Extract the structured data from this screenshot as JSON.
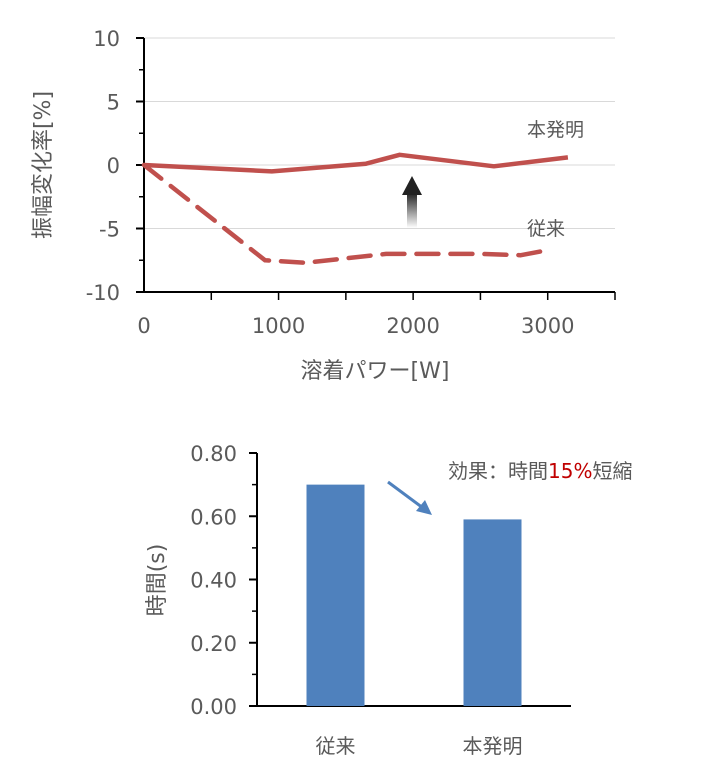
{
  "chart_data": [
    {
      "type": "line",
      "xlabel": "溶着パワー[W]",
      "ylabel": "振幅変化率[%]",
      "xlim": [
        0,
        3500
      ],
      "ylim": [
        -10,
        10
      ],
      "x_ticks": [
        "0",
        "1000",
        "2000",
        "3000"
      ],
      "y_ticks": [
        "10",
        "5",
        "0",
        "-5",
        "-10"
      ],
      "grid": true,
      "series": [
        {
          "name": "本発明",
          "style": "solid",
          "color": "#c0504d",
          "points": [
            [
              0,
              0
            ],
            [
              950,
              -0.5
            ],
            [
              1650,
              0.1
            ],
            [
              1900,
              0.8
            ],
            [
              2600,
              -0.1
            ],
            [
              3150,
              0.6
            ]
          ]
        },
        {
          "name": "従来",
          "style": "dashed",
          "color": "#c0504d",
          "points": [
            [
              0,
              0
            ],
            [
              900,
              -7.5
            ],
            [
              1200,
              -7.7
            ],
            [
              1800,
              -7.0
            ],
            [
              2500,
              -7.0
            ],
            [
              2800,
              -7.1
            ],
            [
              3000,
              -6.7
            ]
          ]
        }
      ]
    },
    {
      "type": "bar",
      "categories": [
        "従来",
        "本発明"
      ],
      "values": [
        0.7,
        0.59
      ],
      "ylabel": "時間(s)",
      "ylim": [
        0,
        0.8
      ],
      "y_ticks": [
        "0.00",
        "0.20",
        "0.40",
        "0.60",
        "0.80"
      ],
      "color": "#4f81bd",
      "annotation": {
        "prefix": "効果：時間",
        "highlight": "15%",
        "suffix": "短縮",
        "highlight_color": "#c00000"
      }
    }
  ]
}
